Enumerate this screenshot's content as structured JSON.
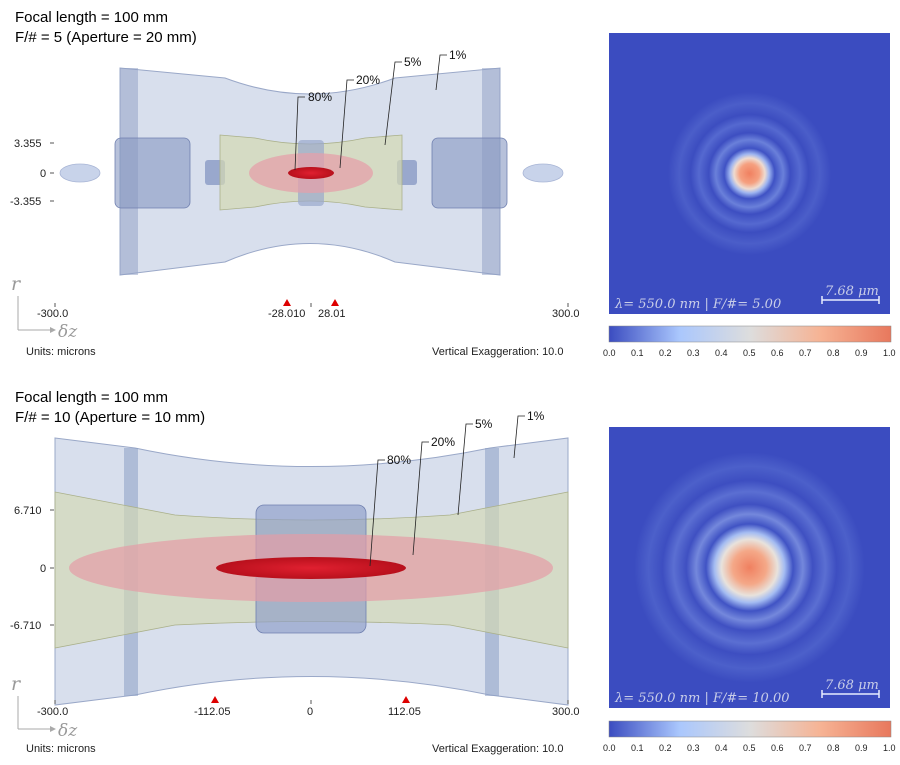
{
  "panels": [
    {
      "title_line1": "Focal length = 100 mm",
      "title_line2": "F/# = 5 (Aperture = 20 mm)",
      "y_ticks": [
        "3.355",
        "0",
        "-3.355"
      ],
      "x_ticks": [
        "-300.0",
        "-28.010",
        "28.01",
        "300.0"
      ],
      "contour_labels": [
        "80%",
        "20%",
        "5%",
        "1%"
      ],
      "units": "Units: microns",
      "exaggeration": "Vertical Exaggeration: 10.0",
      "psf_wavelength": "λ= 550.0 nm | F/#= 5.00",
      "psf_scale": "7.68 μm",
      "colorbar_ticks": [
        "0.0",
        "0.1",
        "0.2",
        "0.3",
        "0.4",
        "0.5",
        "0.6",
        "0.7",
        "0.8",
        "0.9",
        "1.0"
      ]
    },
    {
      "title_line1": "Focal length = 100 mm",
      "title_line2": "F/# = 10 (Aperture = 10 mm)",
      "y_ticks": [
        "6.710",
        "0",
        "-6.710"
      ],
      "x_ticks": [
        "-300.0",
        "-112.05",
        "0",
        "112.05",
        "300.0"
      ],
      "contour_labels": [
        "80%",
        "20%",
        "5%",
        "1%"
      ],
      "units": "Units: microns",
      "exaggeration": "Vertical Exaggeration: 10.0",
      "psf_wavelength": "λ= 550.0 nm | F/#= 10.00",
      "psf_scale": "7.68 μm",
      "colorbar_ticks": [
        "0.0",
        "0.1",
        "0.2",
        "0.3",
        "0.4",
        "0.5",
        "0.6",
        "0.7",
        "0.8",
        "0.9",
        "1.0"
      ]
    }
  ],
  "axis_r": "r",
  "axis_z": "δz",
  "colors": {
    "psf_background": "#3b4cc0",
    "psf_peak": "#f08060",
    "contour_1pct": "#b6c2dc",
    "contour_5pct": "#d3d6b6",
    "contour_20pct": "#e8a4ae",
    "contour_80pct": "#d42030",
    "marker": "#dd0000"
  }
}
